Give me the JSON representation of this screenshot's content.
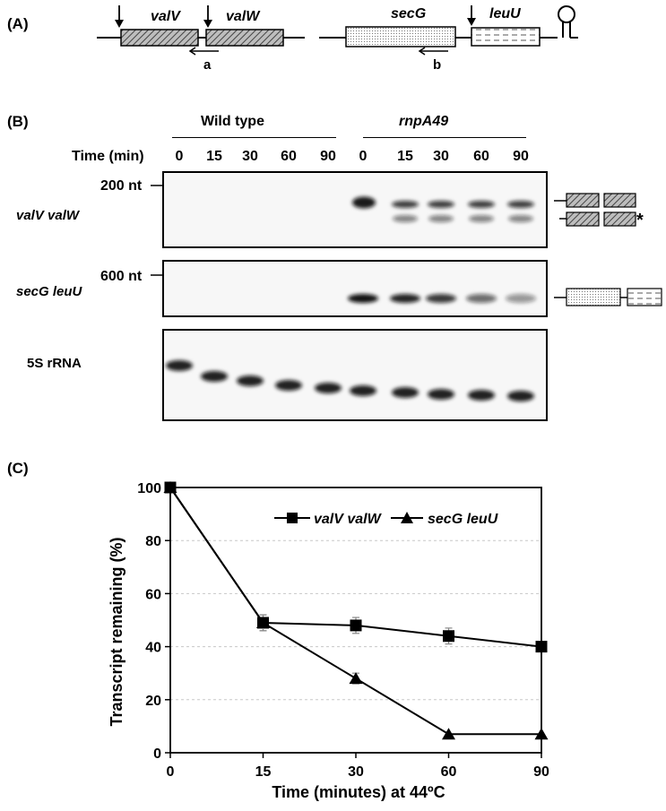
{
  "panels": {
    "a": "(A)",
    "b": "(B)",
    "c": "(C)"
  },
  "diagram": {
    "genes": [
      "valV",
      "valW",
      "secG",
      "leuU"
    ],
    "primers": [
      "a",
      "b"
    ]
  },
  "blot": {
    "groups": [
      "Wild type",
      "rnpA49"
    ],
    "time_label": "Time (min)",
    "timepoints": [
      "0",
      "15",
      "30",
      "60",
      "90",
      "0",
      "15",
      "30",
      "60",
      "90"
    ],
    "rows": [
      {
        "label": "valV valW",
        "marker": "200 nt"
      },
      {
        "label": "secG leuU",
        "marker": "600 nt"
      },
      {
        "label": "5S rRNA",
        "marker": ""
      }
    ],
    "asterisk": "*"
  },
  "chart_data": {
    "type": "line",
    "x": [
      0,
      15,
      30,
      60,
      90
    ],
    "xticks": [
      "0",
      "15",
      "30",
      "60",
      "90"
    ],
    "yticks": [
      "0",
      "20",
      "40",
      "60",
      "80",
      "100"
    ],
    "xlabel": "Time (minutes) at 44ºC",
    "ylabel": "Transcript remaining (%)",
    "ylim": [
      0,
      100
    ],
    "grid": true,
    "legend_position": "top-right",
    "series": [
      {
        "name": "valV valW",
        "marker": "square",
        "values": [
          100,
          49,
          48,
          44,
          40
        ],
        "errors": [
          0,
          3,
          3,
          3,
          0
        ]
      },
      {
        "name": "secG leuU",
        "marker": "triangle",
        "values": [
          100,
          49,
          28,
          7,
          7
        ],
        "errors": [
          0,
          3,
          2,
          0,
          0
        ]
      }
    ]
  }
}
